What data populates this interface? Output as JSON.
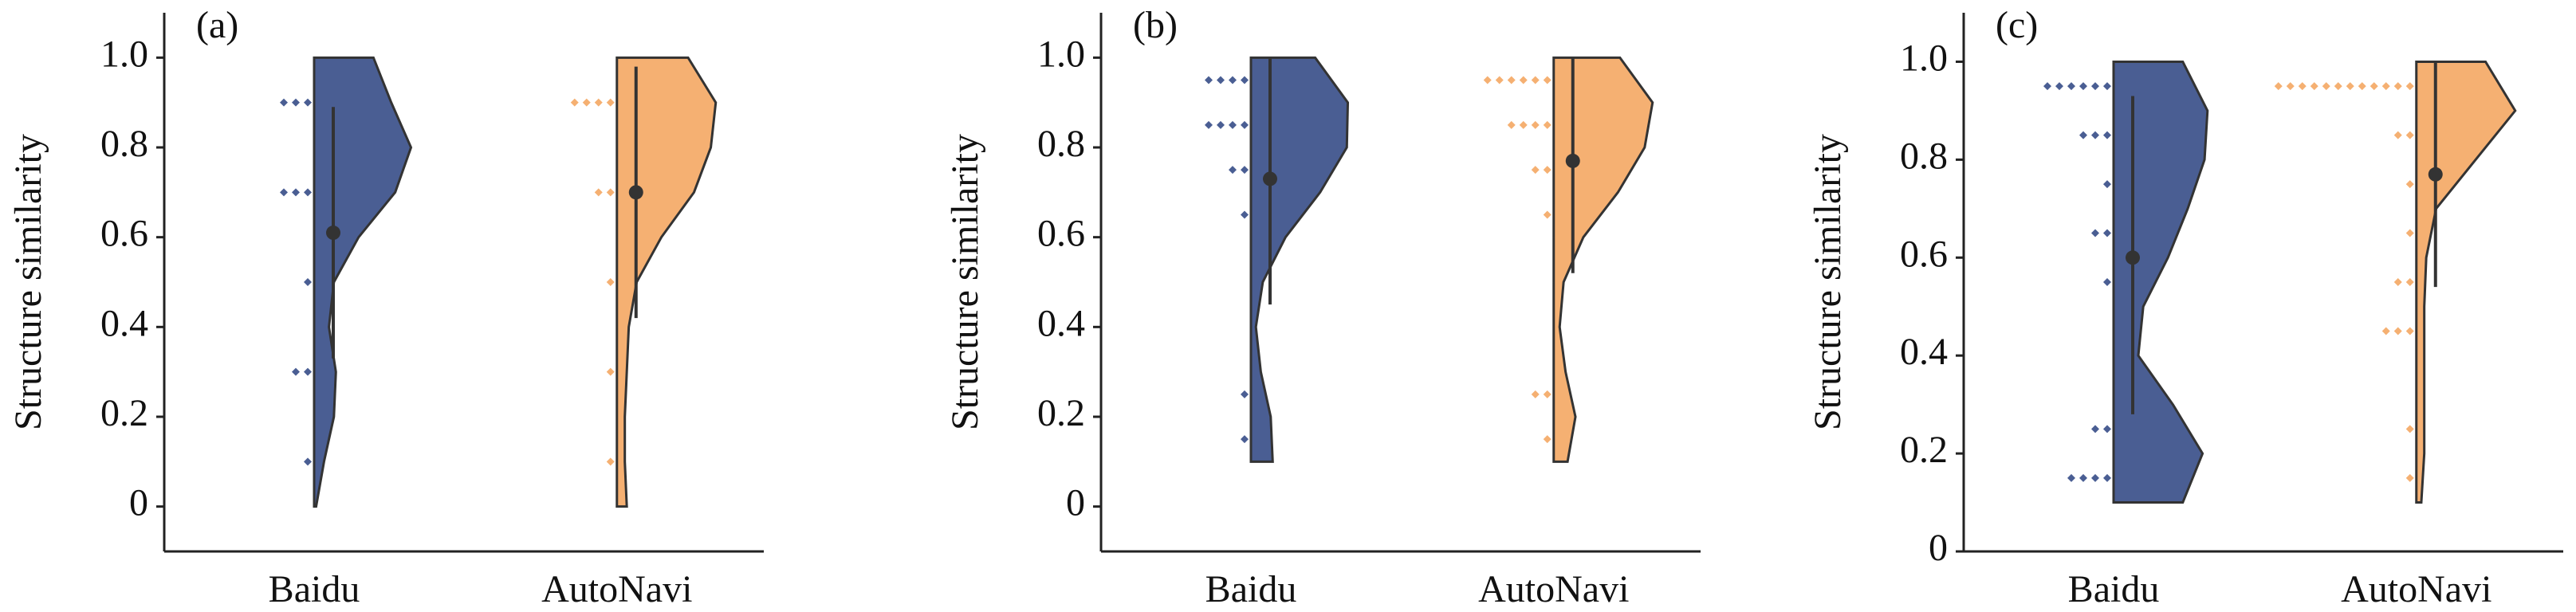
{
  "chart_data": [
    {
      "type": "violin",
      "panel_label": "(a)",
      "y_label": "Structure similarity",
      "categories": [
        "Baidu",
        "AutoNavi"
      ],
      "ylim": [
        -0.1,
        1.1
      ],
      "yticks": [
        {
          "value": 0,
          "label": "0"
        },
        0.2,
        0.4,
        0.6,
        0.8,
        {
          "value": 1,
          "label": "1.0"
        }
      ],
      "series": [
        {
          "color": "#4a5e93",
          "mean": 0.61,
          "ci": [
            0.33,
            0.89
          ],
          "points": [
            0.9,
            0.9,
            0.9,
            0.7,
            0.7,
            0.7,
            0.5,
            0.3,
            0.3,
            0.1
          ],
          "violin_y": [
            0,
            0.1,
            0.2,
            0.3,
            0.4,
            0.5,
            0.6,
            0.7,
            0.8,
            0.9,
            1.0
          ],
          "violin_density": [
            0.02,
            0.1,
            0.2,
            0.22,
            0.15,
            0.2,
            0.45,
            0.82,
            0.98,
            0.78,
            0.6
          ]
        },
        {
          "color": "#f5b072",
          "mean": 0.7,
          "ci": [
            0.42,
            0.98
          ],
          "points": [
            0.9,
            0.9,
            0.9,
            0.9,
            0.7,
            0.7,
            0.5,
            0.3,
            0.1
          ],
          "violin_y": [
            0,
            0.1,
            0.2,
            0.3,
            0.4,
            0.5,
            0.6,
            0.7,
            0.8,
            0.9,
            1.0
          ],
          "violin_density": [
            0.1,
            0.08,
            0.08,
            0.1,
            0.12,
            0.2,
            0.45,
            0.78,
            0.95,
            1.0,
            0.72
          ]
        }
      ]
    },
    {
      "type": "violin",
      "panel_label": "(b)",
      "y_label": "Structure similarity",
      "categories": [
        "Baidu",
        "AutoNavi"
      ],
      "ylim": [
        -0.1,
        1.1
      ],
      "yticks": [
        {
          "value": 0,
          "label": "0"
        },
        0.2,
        0.4,
        0.6,
        0.8,
        {
          "value": 1,
          "label": "1.0"
        }
      ],
      "series": [
        {
          "color": "#4a5e93",
          "mean": 0.73,
          "ci": [
            0.45,
            1.0
          ],
          "points": [
            0.95,
            0.95,
            0.95,
            0.95,
            0.85,
            0.85,
            0.85,
            0.85,
            0.75,
            0.75,
            0.65,
            0.25,
            0.15
          ],
          "violin_y": [
            0.1,
            0.2,
            0.3,
            0.4,
            0.5,
            0.6,
            0.7,
            0.8,
            0.9,
            1.0
          ],
          "violin_density": [
            0.22,
            0.2,
            0.1,
            0.05,
            0.12,
            0.35,
            0.7,
            0.97,
            0.98,
            0.65
          ]
        },
        {
          "color": "#f5b072",
          "mean": 0.77,
          "ci": [
            0.52,
            1.0
          ],
          "points": [
            0.95,
            0.95,
            0.95,
            0.95,
            0.95,
            0.95,
            0.85,
            0.85,
            0.85,
            0.85,
            0.75,
            0.75,
            0.65,
            0.25,
            0.25,
            0.15
          ],
          "violin_y": [
            0.1,
            0.2,
            0.3,
            0.4,
            0.5,
            0.6,
            0.7,
            0.8,
            0.9,
            1.0
          ],
          "violin_density": [
            0.14,
            0.22,
            0.12,
            0.06,
            0.1,
            0.3,
            0.65,
            0.92,
            1.0,
            0.67
          ]
        }
      ]
    },
    {
      "type": "violin",
      "panel_label": "(c)",
      "y_label": "Structure similarity",
      "categories": [
        "Baidu",
        "AutoNavi"
      ],
      "ylim": [
        0,
        1.1
      ],
      "yticks": [
        {
          "value": 0,
          "label": "0"
        },
        0.2,
        0.4,
        0.6,
        0.8,
        {
          "value": 1,
          "label": "1.0"
        }
      ],
      "series": [
        {
          "color": "#4a5e93",
          "mean": 0.6,
          "ci": [
            0.28,
            0.93
          ],
          "points": [
            0.95,
            0.95,
            0.95,
            0.95,
            0.95,
            0.95,
            0.85,
            0.85,
            0.85,
            0.75,
            0.65,
            0.65,
            0.55,
            0.25,
            0.25,
            0.15,
            0.15,
            0.15,
            0.15
          ],
          "violin_y": [
            0.1,
            0.2,
            0.3,
            0.4,
            0.5,
            0.6,
            0.7,
            0.8,
            0.9,
            1.0
          ],
          "violin_density": [
            0.7,
            0.9,
            0.6,
            0.25,
            0.3,
            0.55,
            0.75,
            0.92,
            0.95,
            0.7
          ]
        },
        {
          "color": "#f5b072",
          "mean": 0.77,
          "ci": [
            0.54,
            1.0
          ],
          "points": [
            0.95,
            0.95,
            0.95,
            0.95,
            0.95,
            0.95,
            0.95,
            0.95,
            0.95,
            0.95,
            0.95,
            0.95,
            0.85,
            0.85,
            0.75,
            0.65,
            0.55,
            0.55,
            0.45,
            0.45,
            0.45,
            0.25,
            0.15
          ],
          "violin_y": [
            0.1,
            0.2,
            0.3,
            0.4,
            0.5,
            0.6,
            0.7,
            0.8,
            0.9,
            1.0
          ],
          "violin_density": [
            0.05,
            0.08,
            0.08,
            0.08,
            0.08,
            0.1,
            0.2,
            0.6,
            1.0,
            0.7
          ]
        }
      ]
    }
  ]
}
